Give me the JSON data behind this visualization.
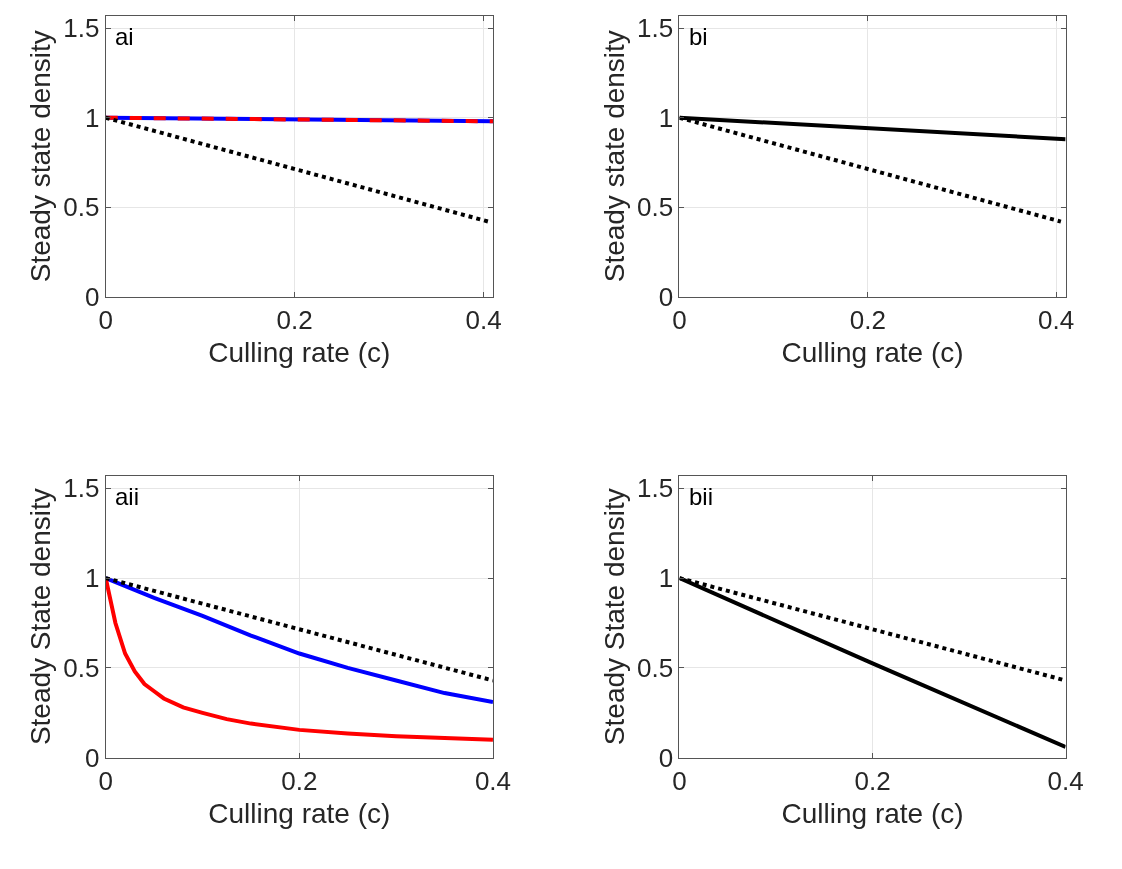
{
  "chart_data": [
    {
      "type": "line",
      "annotations": [
        "ai"
      ],
      "xlabel": "Culling rate (c)",
      "ylabel": "Steady state density",
      "xlim": [
        0,
        0.41
      ],
      "xticks": [
        0,
        0.2,
        0.4
      ],
      "ylim": [
        0,
        1.57
      ],
      "yticks": [
        0,
        0.5,
        1,
        1.5
      ],
      "grid": true,
      "series": [
        {
          "color": "#0000ff",
          "line_style": "solid",
          "x": [
            0,
            0.41
          ],
          "values": [
            1,
            0.98
          ]
        },
        {
          "color": "#ff0000",
          "line_style": "dashed",
          "x": [
            0,
            0.41
          ],
          "values": [
            1,
            0.98
          ]
        },
        {
          "color": "#000000",
          "line_style": "dotted",
          "x": [
            0,
            0.405
          ],
          "values": [
            1,
            0.42
          ]
        }
      ]
    },
    {
      "type": "line",
      "annotations": [
        "bi"
      ],
      "xlabel": "Culling rate (c)",
      "ylabel": "Steady state density",
      "xlim": [
        0,
        0.41
      ],
      "xticks": [
        0,
        0.2,
        0.4
      ],
      "ylim": [
        0,
        1.57
      ],
      "yticks": [
        0,
        0.5,
        1,
        1.5
      ],
      "grid": true,
      "series": [
        {
          "color": "#000000",
          "line_style": "solid",
          "x": [
            0,
            0.41
          ],
          "values": [
            1,
            0.88
          ]
        },
        {
          "color": "#000000",
          "line_style": "dotted",
          "x": [
            0,
            0.405
          ],
          "values": [
            1,
            0.42
          ]
        }
      ]
    },
    {
      "type": "line",
      "annotations": [
        "aii"
      ],
      "xlabel": "Culling rate (c)",
      "ylabel": "Steady State density",
      "xlim": [
        0,
        0.4
      ],
      "xticks": [
        0,
        0.2,
        0.4
      ],
      "ylim": [
        0,
        1.57
      ],
      "yticks": [
        0,
        0.5,
        1,
        1.5
      ],
      "grid": true,
      "series": [
        {
          "color": "#0000ff",
          "line_style": "solid",
          "x": [
            0,
            0.05,
            0.1,
            0.15,
            0.2,
            0.25,
            0.3,
            0.35,
            0.4
          ],
          "values": [
            1,
            0.89,
            0.79,
            0.68,
            0.58,
            0.5,
            0.43,
            0.36,
            0.31
          ]
        },
        {
          "color": "#ff0000",
          "line_style": "solid",
          "x": [
            0,
            0.01,
            0.02,
            0.03,
            0.04,
            0.05,
            0.06,
            0.08,
            0.1,
            0.125,
            0.15,
            0.2,
            0.25,
            0.3,
            0.35,
            0.4
          ],
          "values": [
            1,
            0.75,
            0.58,
            0.48,
            0.41,
            0.37,
            0.33,
            0.28,
            0.25,
            0.215,
            0.19,
            0.155,
            0.135,
            0.12,
            0.11,
            0.1
          ]
        },
        {
          "color": "#000000",
          "line_style": "dotted",
          "x": [
            0,
            0.4
          ],
          "values": [
            1,
            0.43
          ]
        }
      ]
    },
    {
      "type": "line",
      "annotations": [
        "bii"
      ],
      "xlabel": "Culling rate (c)",
      "ylabel": "Steady State density",
      "xlim": [
        0,
        0.4
      ],
      "xticks": [
        0,
        0.2,
        0.4
      ],
      "ylim": [
        0,
        1.57
      ],
      "yticks": [
        0,
        0.5,
        1,
        1.5
      ],
      "grid": true,
      "series": [
        {
          "color": "#000000",
          "line_style": "solid",
          "x": [
            0,
            0.2,
            0.4
          ],
          "values": [
            1,
            0.525,
            0.06
          ]
        },
        {
          "color": "#000000",
          "line_style": "dotted",
          "x": [
            0,
            0.4
          ],
          "values": [
            1,
            0.43
          ]
        }
      ]
    }
  ]
}
